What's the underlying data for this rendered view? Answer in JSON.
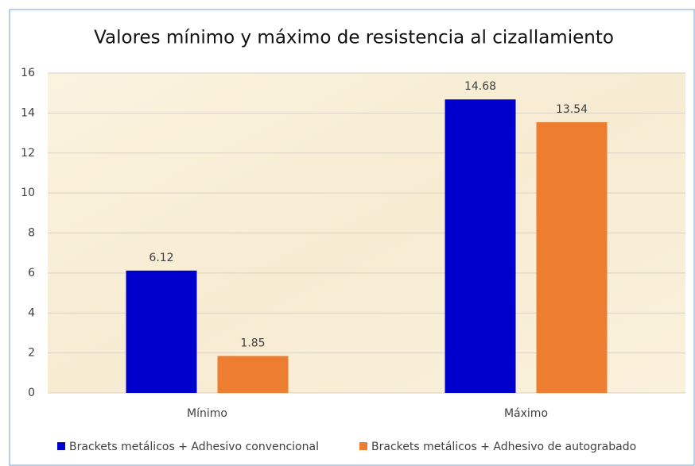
{
  "chart_data": {
    "type": "bar",
    "title": "Valores mínimo y máximo de resistencia al cizallamiento",
    "categories": [
      "Mínimo",
      "Máximo"
    ],
    "series": [
      {
        "name": "Brackets metálicos + Adhesivo convencional",
        "color": "#0000cc",
        "values": [
          6.12,
          14.68
        ]
      },
      {
        "name": "Brackets metálicos + Adhesivo de autograbado",
        "color": "#ed7d31",
        "values": [
          1.85,
          13.54
        ]
      }
    ],
    "ylim": [
      0,
      16
    ],
    "yticks": [
      0,
      2,
      4,
      6,
      8,
      10,
      12,
      14,
      16
    ],
    "grid": true,
    "legend": "bottom"
  }
}
